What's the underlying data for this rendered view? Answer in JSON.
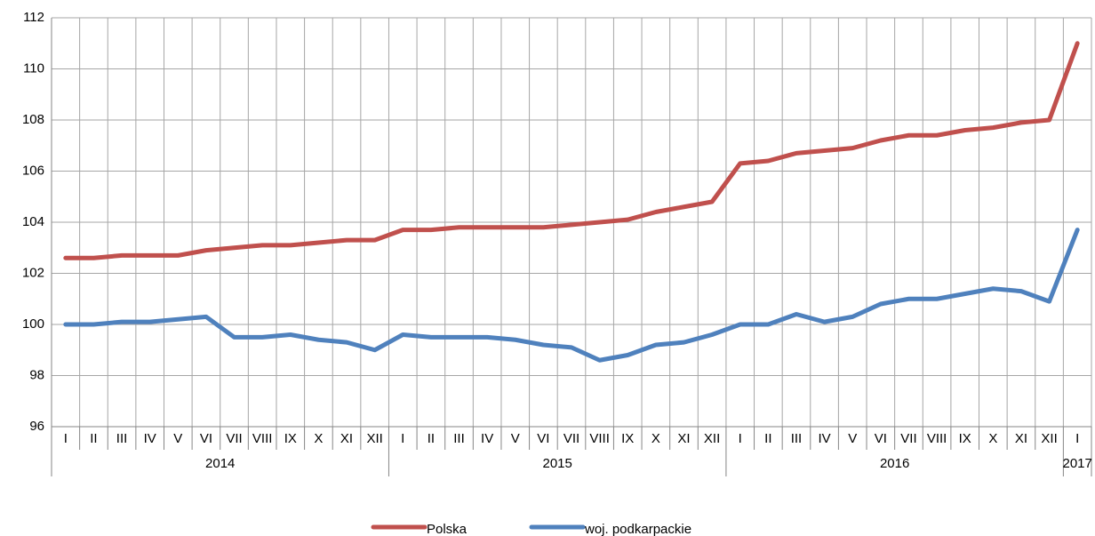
{
  "chart_data": {
    "type": "line",
    "groups": [
      {
        "label": "2014",
        "categories": [
          "I",
          "II",
          "III",
          "IV",
          "V",
          "VI",
          "VII",
          "VIII",
          "IX",
          "X",
          "XI",
          "XII"
        ]
      },
      {
        "label": "2015",
        "categories": [
          "I",
          "II",
          "III",
          "IV",
          "V",
          "VI",
          "VII",
          "VIII",
          "IX",
          "X",
          "XI",
          "XII"
        ]
      },
      {
        "label": "2016",
        "categories": [
          "I",
          "II",
          "III",
          "IV",
          "V",
          "VI",
          "VII",
          "VIII",
          "IX",
          "X",
          "XI",
          "XII"
        ]
      },
      {
        "label": "2017",
        "categories": [
          "I"
        ]
      }
    ],
    "series": [
      {
        "name": "Polska",
        "color": "#c0504d",
        "values": [
          102.6,
          102.6,
          102.7,
          102.7,
          102.7,
          102.9,
          103.0,
          103.1,
          103.1,
          103.2,
          103.3,
          103.3,
          103.7,
          103.7,
          103.8,
          103.8,
          103.8,
          103.8,
          103.9,
          104.0,
          104.1,
          104.4,
          104.6,
          104.8,
          106.3,
          106.4,
          106.7,
          106.8,
          106.9,
          107.2,
          107.4,
          107.4,
          107.6,
          107.7,
          107.9,
          108.0,
          111.0
        ]
      },
      {
        "name": "woj. podkarpackie",
        "color": "#4f81bd",
        "values": [
          100.0,
          100.0,
          100.1,
          100.1,
          100.2,
          100.3,
          99.5,
          99.5,
          99.6,
          99.4,
          99.3,
          99.0,
          99.6,
          99.5,
          99.5,
          99.5,
          99.4,
          99.2,
          99.1,
          98.6,
          98.8,
          99.2,
          99.3,
          99.6,
          100.0,
          100.0,
          100.4,
          100.1,
          100.3,
          100.8,
          101.0,
          101.0,
          101.2,
          101.4,
          101.3,
          100.9,
          103.7
        ]
      }
    ],
    "ylim": [
      96,
      112
    ],
    "yticks": [
      96,
      98,
      100,
      102,
      104,
      106,
      108,
      110,
      112
    ],
    "grid": true,
    "legend": "bottom"
  }
}
